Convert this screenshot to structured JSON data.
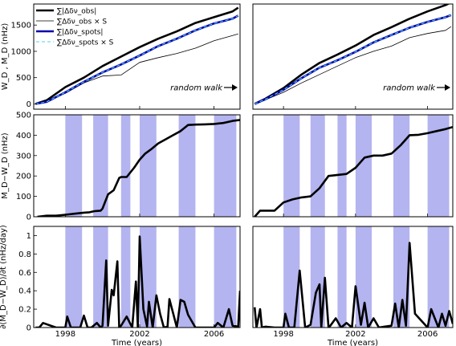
{
  "chart_data": [
    {
      "id": "top-left",
      "type": "line",
      "ylabel": "W_D , M_D (nHz)",
      "xlim": [
        1996.3,
        2007.4
      ],
      "ylim": [
        -100,
        1900
      ],
      "yticks": [
        0,
        500,
        1000,
        1500
      ],
      "annotation": "random walk",
      "legend_position": "top-left",
      "legend": [
        {
          "text": "∑|Δδν_obs|",
          "color": "#000000",
          "style": "thick"
        },
        {
          "text": "∑Δδν_obs × S",
          "color": "#000000",
          "style": "thin"
        },
        {
          "text": "∑|Δδν_spots|",
          "color": "#0000aa",
          "style": "thick-blue"
        },
        {
          "text": "∑Δδν_spots × S",
          "color": "#33aaff",
          "style": "dashed"
        }
      ],
      "series": [
        {
          "x": [
            1996.4,
            1997,
            1998,
            1999,
            2000,
            2001,
            2002,
            2003,
            2004,
            2005,
            2006,
            2007,
            2007.3
          ],
          "values": [
            0,
            70,
            320,
            500,
            720,
            900,
            1080,
            1240,
            1380,
            1540,
            1650,
            1760,
            1830
          ]
        },
        {
          "x": [
            1996.4,
            1997,
            1998,
            1999,
            2000,
            2001,
            2002,
            2003,
            2004,
            2005,
            2006,
            2007,
            2007.3
          ],
          "values": [
            0,
            60,
            200,
            400,
            530,
            550,
            790,
            880,
            960,
            1060,
            1200,
            1300,
            1330
          ]
        },
        {
          "x": [
            1996.4,
            1997,
            1998,
            1999,
            2000,
            2001,
            2002,
            2003,
            2004,
            2005,
            2006,
            2007,
            2007.3
          ],
          "values": [
            0,
            40,
            220,
            420,
            600,
            750,
            920,
            1100,
            1240,
            1400,
            1530,
            1620,
            1680
          ]
        },
        {
          "x": [
            1996.4,
            1997,
            1998,
            1999,
            2000,
            2001,
            2002,
            2003,
            2004,
            2005,
            2006,
            2007,
            2007.3
          ],
          "values": [
            0,
            40,
            220,
            420,
            600,
            750,
            920,
            1100,
            1240,
            1400,
            1530,
            1620,
            1680
          ]
        }
      ]
    },
    {
      "id": "top-right",
      "type": "line",
      "xlim": [
        1996.3,
        2007.4
      ],
      "ylim": [
        -100,
        1900
      ],
      "annotation": "random walk",
      "series": [
        {
          "x": [
            1996.4,
            1997,
            1998,
            1999,
            2000,
            2001,
            2002,
            2003,
            2004,
            2005,
            2006,
            2007,
            2007.3
          ],
          "values": [
            0,
            100,
            300,
            560,
            780,
            940,
            1110,
            1310,
            1460,
            1620,
            1760,
            1880,
            1930
          ]
        },
        {
          "x": [
            1996.4,
            1997,
            1998,
            1999,
            2000,
            2001,
            2002,
            2003,
            2004,
            2005,
            2006,
            2007,
            2007.3
          ],
          "values": [
            0,
            80,
            220,
            400,
            560,
            720,
            880,
            1000,
            1100,
            1260,
            1340,
            1400,
            1470
          ]
        },
        {
          "x": [
            1996.4,
            1997,
            1998,
            1999,
            2000,
            2001,
            2002,
            2003,
            2004,
            2005,
            2006,
            2007,
            2007.3
          ],
          "values": [
            0,
            90,
            270,
            490,
            690,
            830,
            990,
            1170,
            1310,
            1450,
            1560,
            1650,
            1690
          ]
        },
        {
          "x": [
            1996.4,
            1997,
            1998,
            1999,
            2000,
            2001,
            2002,
            2003,
            2004,
            2005,
            2006,
            2007,
            2007.3
          ],
          "values": [
            0,
            90,
            270,
            490,
            690,
            830,
            990,
            1170,
            1310,
            1450,
            1560,
            1650,
            1690
          ]
        }
      ]
    },
    {
      "id": "mid-left",
      "type": "line",
      "ylabel": "M_D−W_D (nHz)",
      "xlim": [
        1996.3,
        2007.4
      ],
      "ylim": [
        0,
        500
      ],
      "yticks": [
        0,
        100,
        200,
        300,
        400,
        500
      ],
      "shaded_x_ranges": [
        [
          1998.0,
          1998.9
        ],
        [
          1999.5,
          2000.3
        ],
        [
          2001.0,
          2001.5
        ],
        [
          2002.0,
          2002.9
        ],
        [
          2004.1,
          2005.0
        ],
        [
          2006.0,
          2007.2
        ]
      ],
      "series": [
        {
          "x": [
            1996.5,
            1997.0,
            1997.5,
            1998.0,
            1998.5,
            1999.0,
            1999.3,
            1999.6,
            1999.9,
            2000.0,
            2000.3,
            2000.6,
            2000.9,
            2001.0,
            2001.3,
            2001.7,
            2002.0,
            2002.3,
            2002.6,
            2003.0,
            2003.4,
            2003.8,
            2004.2,
            2004.6,
            2005.0,
            2005.5,
            2006.0,
            2006.5,
            2007.0,
            2007.4
          ],
          "values": [
            0,
            5,
            5,
            10,
            15,
            20,
            22,
            28,
            30,
            40,
            110,
            130,
            190,
            195,
            195,
            240,
            280,
            310,
            330,
            360,
            380,
            400,
            420,
            450,
            452,
            453,
            455,
            460,
            470,
            475
          ]
        }
      ]
    },
    {
      "id": "mid-right",
      "type": "line",
      "xlim": [
        1996.3,
        2007.4
      ],
      "ylim": [
        0,
        500
      ],
      "shaded_x_ranges": [
        [
          1998.0,
          1998.9
        ],
        [
          1999.5,
          2000.3
        ],
        [
          2001.0,
          2001.5
        ],
        [
          2002.0,
          2002.9
        ],
        [
          2004.1,
          2005.0
        ],
        [
          2006.0,
          2007.2
        ]
      ],
      "series": [
        {
          "x": [
            1996.4,
            1996.7,
            1997.0,
            1997.5,
            1998.0,
            1998.5,
            1999.0,
            1999.5,
            2000.0,
            2000.5,
            2001.0,
            2001.5,
            2002.0,
            2002.5,
            2003.0,
            2003.5,
            2004.0,
            2004.5,
            2005.0,
            2005.5,
            2006.0,
            2006.5,
            2007.0,
            2007.4
          ],
          "values": [
            0,
            30,
            30,
            30,
            70,
            85,
            95,
            100,
            140,
            200,
            205,
            210,
            240,
            290,
            300,
            300,
            310,
            350,
            400,
            402,
            410,
            420,
            430,
            440
          ]
        }
      ]
    },
    {
      "id": "bottom-left",
      "type": "line",
      "ylabel": "∂(M_D−W_D)/∂t (nHz/day)",
      "xlabel": "Time (years)",
      "xlim": [
        1996.3,
        2007.4
      ],
      "ylim": [
        0,
        1.1
      ],
      "yticks": [
        0.0,
        0.2,
        0.4,
        0.6,
        0.8,
        1.0
      ],
      "xticks": [
        1998,
        2002,
        2006
      ],
      "shaded_x_ranges": [
        [
          1998.0,
          1998.9
        ],
        [
          1999.5,
          2000.3
        ],
        [
          2001.0,
          2001.5
        ],
        [
          2002.0,
          2002.9
        ],
        [
          2004.1,
          2005.0
        ],
        [
          2006.0,
          2007.2
        ]
      ],
      "series": [
        {
          "x": [
            1996.4,
            1996.6,
            1996.8,
            1997.5,
            1998.0,
            1998.1,
            1998.3,
            1998.8,
            1999.0,
            1999.2,
            1999.4,
            1999.7,
            1999.9,
            2000.0,
            2000.2,
            2000.3,
            2000.5,
            2000.6,
            2000.8,
            2000.9,
            2001.0,
            2001.3,
            2001.6,
            2001.8,
            2001.9,
            2002.0,
            2002.2,
            2002.4,
            2002.5,
            2002.7,
            2002.9,
            2003.1,
            2003.3,
            2003.5,
            2003.6,
            2004.0,
            2004.2,
            2004.4,
            2004.6,
            2005.0,
            2005.5,
            2006.0,
            2006.2,
            2006.5,
            2006.8,
            2007.0,
            2007.3,
            2007.4
          ],
          "values": [
            0,
            0,
            0.05,
            0,
            0,
            0.12,
            0,
            0,
            0.13,
            0,
            0,
            0.05,
            0,
            0.02,
            0.73,
            0.02,
            0.41,
            0.35,
            0.72,
            0,
            0.02,
            0.12,
            0,
            0.5,
            0,
            0.99,
            0.2,
            0.01,
            0.28,
            0,
            0.35,
            0.15,
            0,
            0.01,
            0.31,
            0,
            0.3,
            0.28,
            0.14,
            0,
            0,
            0,
            0.05,
            0,
            0.2,
            0.02,
            0.01,
            0.4
          ]
        }
      ]
    },
    {
      "id": "bottom-right",
      "type": "line",
      "xlabel": "Time (years)",
      "xlim": [
        1996.3,
        2007.4
      ],
      "ylim": [
        0,
        1.1
      ],
      "xticks": [
        1998,
        2002,
        2006
      ],
      "shaded_x_ranges": [
        [
          1998.0,
          1998.9
        ],
        [
          1999.5,
          2000.3
        ],
        [
          2001.0,
          2001.5
        ],
        [
          2002.0,
          2002.9
        ],
        [
          2004.1,
          2005.0
        ],
        [
          2006.0,
          2007.2
        ]
      ],
      "series": [
        {
          "x": [
            1996.4,
            1996.5,
            1996.7,
            1996.8,
            1997.0,
            1997.5,
            1998.0,
            1998.1,
            1998.3,
            1998.6,
            1998.9,
            1999.2,
            1999.5,
            1999.8,
            2000.0,
            2000.1,
            2000.3,
            2000.5,
            2000.6,
            2000.9,
            2001.2,
            2001.5,
            2001.8,
            2002.0,
            2002.3,
            2002.5,
            2002.7,
            2003.0,
            2003.3,
            2003.6,
            2004.0,
            2004.2,
            2004.4,
            2004.6,
            2004.8,
            2005.0,
            2005.3,
            2006.0,
            2006.2,
            2006.6,
            2006.8,
            2007.0,
            2007.2,
            2007.4
          ],
          "values": [
            0.22,
            0,
            0.2,
            0,
            0.01,
            0,
            0,
            0.15,
            0,
            0,
            0.62,
            0,
            0.03,
            0.38,
            0.47,
            0,
            0.54,
            0,
            0.02,
            0.1,
            0,
            0.05,
            0,
            0.45,
            0.03,
            0.27,
            0,
            0.1,
            0,
            0.01,
            0.02,
            0.26,
            0,
            0.3,
            0.02,
            0.92,
            0.15,
            0,
            0.2,
            0,
            0.15,
            0.02,
            0.18,
            0.04
          ]
        }
      ]
    }
  ]
}
